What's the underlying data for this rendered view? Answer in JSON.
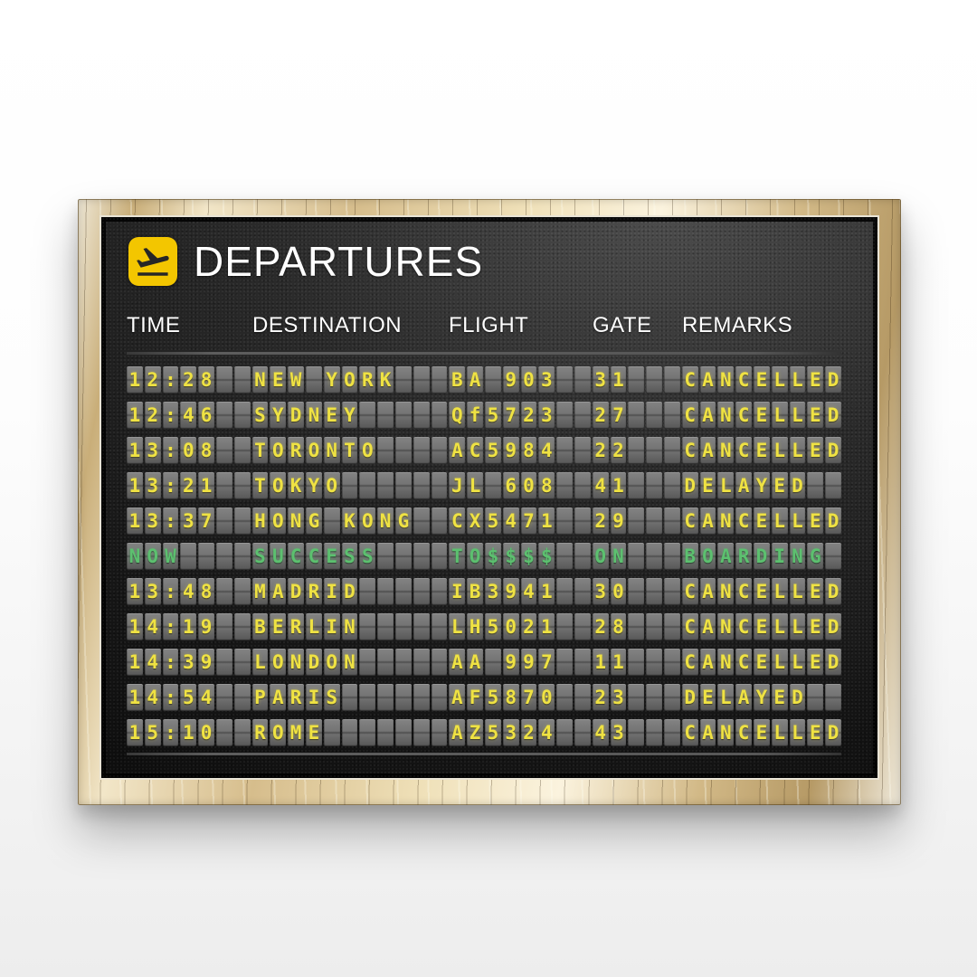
{
  "board": {
    "title": "DEPARTURES",
    "icon": "flight-takeoff-icon",
    "columns": [
      {
        "key": "time",
        "label": "TIME"
      },
      {
        "key": "destination",
        "label": "DESTINATION"
      },
      {
        "key": "flight",
        "label": "FLIGHT"
      },
      {
        "key": "gate",
        "label": "GATE"
      },
      {
        "key": "remarks",
        "label": "REMARKS"
      }
    ],
    "rows": [
      {
        "time": "12:28",
        "destination": "NEW YORK",
        "flight": "BA 903",
        "gate": "31",
        "remarks": "CANCELLED",
        "color": "yellow"
      },
      {
        "time": "12:46",
        "destination": "SYDNEY",
        "flight": "Qf5723",
        "gate": "27",
        "remarks": "CANCELLED",
        "color": "yellow"
      },
      {
        "time": "13:08",
        "destination": "TORONTO",
        "flight": "AC5984",
        "gate": "22",
        "remarks": "CANCELLED",
        "color": "yellow"
      },
      {
        "time": "13:21",
        "destination": "TOKYO",
        "flight": "JL 608",
        "gate": "41",
        "remarks": "DELAYED",
        "color": "yellow"
      },
      {
        "time": "13:37",
        "destination": "HONG KONG",
        "flight": "CX5471",
        "gate": "29",
        "remarks": "CANCELLED",
        "color": "yellow"
      },
      {
        "time": "NOW",
        "destination": "SUCCESS",
        "flight": "TO$$$$",
        "gate": "ON",
        "remarks": "BOARDING",
        "color": "green"
      },
      {
        "time": "13:48",
        "destination": "MADRID",
        "flight": "IB3941",
        "gate": "30",
        "remarks": "CANCELLED",
        "color": "yellow"
      },
      {
        "time": "14:19",
        "destination": "BERLIN",
        "flight": "LH5021",
        "gate": "28",
        "remarks": "CANCELLED",
        "color": "yellow"
      },
      {
        "time": "14:39",
        "destination": "LONDON",
        "flight": "AA 997",
        "gate": "11",
        "remarks": "CANCELLED",
        "color": "yellow"
      },
      {
        "time": "14:54",
        "destination": "PARIS",
        "flight": "AF5870",
        "gate": "23",
        "remarks": "DELAYED",
        "color": "yellow"
      },
      {
        "time": "15:10",
        "destination": "ROME",
        "flight": "AZ5324",
        "gate": "43",
        "remarks": "CANCELLED",
        "color": "yellow"
      }
    ],
    "colors": {
      "flap_text": "#efe243",
      "flap_text_highlight": "#5cc06f",
      "icon_yellow": "#f3c600",
      "icon_plane": "#262626",
      "header_text": "#ffffff",
      "frame_gold": "#d9c08c",
      "board_bg": "#1a1a1a"
    }
  }
}
